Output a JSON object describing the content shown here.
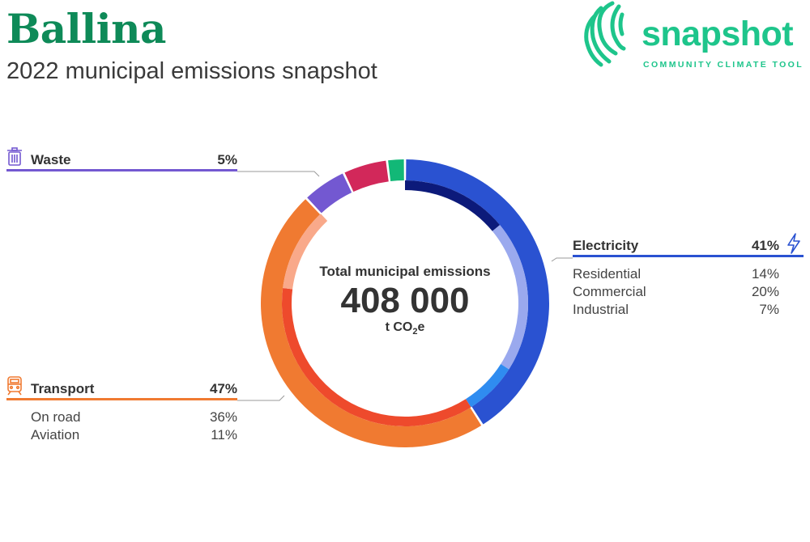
{
  "header": {
    "title": "Ballina",
    "subtitle": "2022 municipal emissions snapshot"
  },
  "logo": {
    "word": "snapshot",
    "tagline": "COMMUNITY CLIMATE TOOL",
    "color": "#1ec58b"
  },
  "center": {
    "label": "Total municipal emissions",
    "value": "408 000",
    "unit_prefix": "t CO",
    "unit_sub": "2",
    "unit_suffix": "e"
  },
  "chart_data": {
    "type": "donut",
    "total": 408000,
    "unit": "t CO2e",
    "outer_ring": [
      {
        "name": "Electricity",
        "percent": 41,
        "color": "#2a52d1"
      },
      {
        "name": "Transport",
        "percent": 47,
        "color": "#f07a31"
      },
      {
        "name": "Waste",
        "percent": 5,
        "color": "#7358d1"
      },
      {
        "name": "",
        "percent": 5,
        "color": "#d2285a"
      },
      {
        "name": "",
        "percent": 2,
        "color": "#12b877"
      }
    ],
    "inner_ring": [
      {
        "name": "Residential",
        "percent": 14,
        "color": "#0c1a7a"
      },
      {
        "name": "Commercial",
        "percent": 20,
        "color": "#9aa9ee"
      },
      {
        "name": "Industrial",
        "percent": 7,
        "color": "#2f8cf0"
      },
      {
        "name": "On road",
        "percent": 36,
        "color": "#ee4a2c"
      },
      {
        "name": "Aviation",
        "percent": 11,
        "color": "#f9a98a"
      }
    ]
  },
  "categories": {
    "waste": {
      "label": "Waste",
      "percent": "5%",
      "color": "#7358d1",
      "icon": "trash-icon",
      "subs": []
    },
    "transport": {
      "label": "Transport",
      "percent": "47%",
      "color": "#f07a31",
      "icon": "train-icon",
      "subs": [
        {
          "label": "On road",
          "percent": "36%"
        },
        {
          "label": "Aviation",
          "percent": "11%"
        }
      ]
    },
    "electricity": {
      "label": "Electricity",
      "percent": "41%",
      "color": "#2a52d1",
      "icon": "lightning-icon",
      "subs": [
        {
          "label": "Residential",
          "percent": "14%"
        },
        {
          "label": "Commercial",
          "percent": "20%"
        },
        {
          "label": "Industrial",
          "percent": "7%"
        }
      ]
    }
  }
}
